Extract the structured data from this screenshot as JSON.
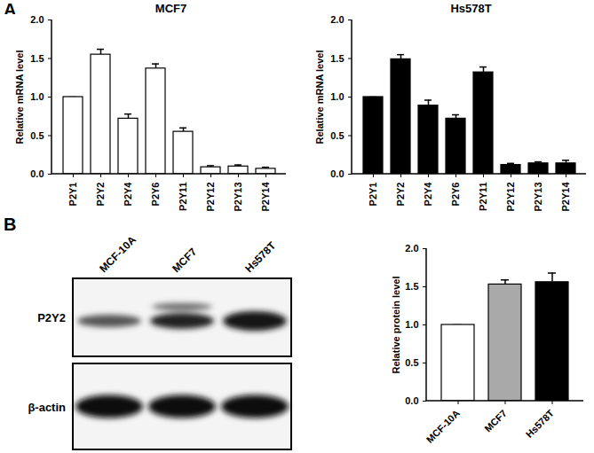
{
  "panels": [
    "A",
    "B"
  ],
  "chart_data": [
    {
      "type": "bar",
      "title": "MCF7",
      "ylabel": "Relative mRNA level",
      "categories": [
        "P2Y1",
        "P2Y2",
        "P2Y4",
        "P2Y6",
        "P2Y11",
        "P2Y12",
        "P2Y13",
        "P2Y14"
      ],
      "values": [
        1.0,
        1.55,
        0.72,
        1.37,
        0.55,
        0.09,
        0.1,
        0.07
      ],
      "errors": [
        0,
        0.07,
        0.06,
        0.06,
        0.05,
        0.02,
        0.02,
        0.02
      ],
      "color": "#ffffff",
      "grid": false,
      "ylim": [
        0,
        2
      ],
      "yticks": [
        {
          "value": 0,
          "label": "0.0"
        },
        0.5,
        {
          "value": 1,
          "label": "1.0"
        },
        1.5,
        {
          "value": 2,
          "label": "2.0"
        }
      ]
    },
    {
      "type": "bar",
      "title": "Hs578T",
      "ylabel": "Relative mRNA level",
      "categories": [
        "P2Y1",
        "P2Y2",
        "P2Y4",
        "P2Y6",
        "P2Y11",
        "P2Y12",
        "P2Y13",
        "P2Y14"
      ],
      "values": [
        1.0,
        1.49,
        0.89,
        0.72,
        1.32,
        0.12,
        0.14,
        0.14
      ],
      "errors": [
        0,
        0.06,
        0.07,
        0.05,
        0.07,
        0.02,
        0.02,
        0.04
      ],
      "color": "#000000",
      "grid": false,
      "ylim": [
        0,
        2
      ],
      "yticks": [
        {
          "value": 0,
          "label": "0.0"
        },
        0.5,
        {
          "value": 1,
          "label": "1.0"
        },
        1.5,
        {
          "value": 2,
          "label": "2.0"
        }
      ]
    },
    {
      "type": "bar",
      "ylabel": "Relative protein level",
      "categories": [
        "MCF-10A",
        "MCF7",
        "Hs578T"
      ],
      "values": [
        1.0,
        1.53,
        1.56
      ],
      "errors": [
        0,
        0.06,
        0.12
      ],
      "colors": [
        "#ffffff",
        "#a9a9a9",
        "#000000"
      ],
      "grid": false,
      "ylim": [
        0,
        2
      ],
      "yticks": [
        {
          "value": 0,
          "label": "0.0"
        },
        0.5,
        {
          "value": 1,
          "label": "1.0"
        },
        1.5,
        {
          "value": 2,
          "label": "2.0"
        }
      ]
    }
  ],
  "blot": {
    "lanes": [
      "MCF-10A",
      "MCF7",
      "Hs578T"
    ],
    "rows": [
      "P2Y2",
      "β-actin"
    ]
  }
}
